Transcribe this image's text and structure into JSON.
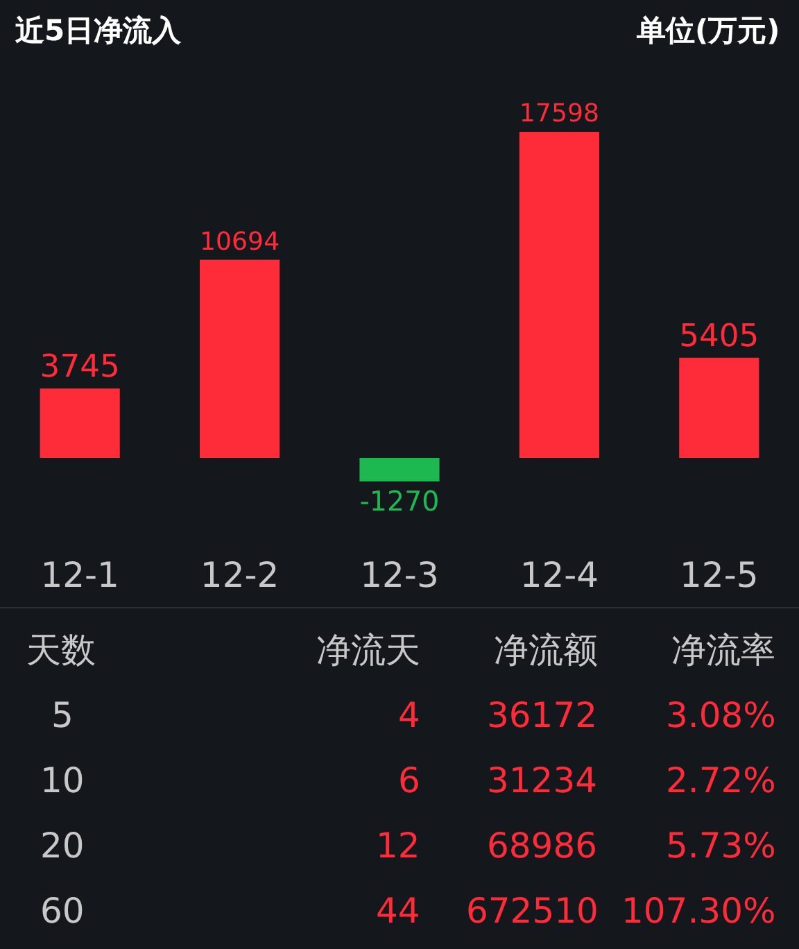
{
  "chart_data": [
    {
      "type": "bar",
      "title": "近5日净流入",
      "annotations": [
        "单位(万元)"
      ],
      "categories": [
        "12-1",
        "12-2",
        "12-3",
        "12-4",
        "12-5"
      ],
      "values": [
        3745,
        10694,
        -1270,
        17598,
        5405
      ],
      "colors": [
        "#fe2b38",
        "#fe2b38",
        "#1db950",
        "#fe2b38",
        "#fe2b38"
      ],
      "data_labels": true
    },
    {
      "type": "other",
      "categories": [
        "天数",
        "净流天",
        "净流额",
        "净流率"
      ],
      "cell_labels": [
        [
          "5",
          "4",
          "36172",
          "3.08%"
        ],
        [
          "10",
          "6",
          "31234",
          "2.72%"
        ],
        [
          "20",
          "12",
          "68986",
          "5.73%"
        ],
        [
          "60",
          "44",
          "672510",
          "107.30%"
        ]
      ]
    }
  ]
}
